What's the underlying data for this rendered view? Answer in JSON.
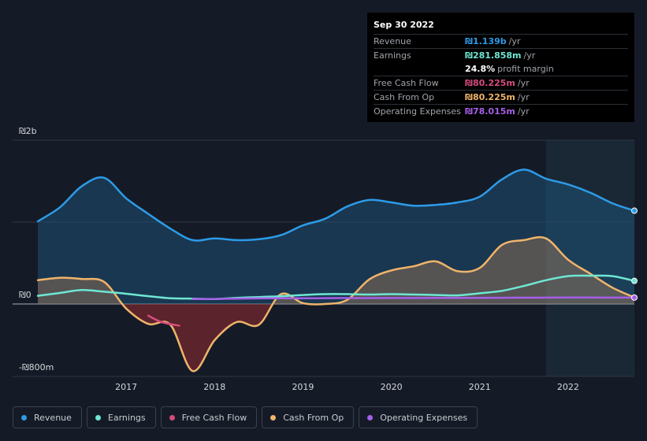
{
  "tooltip": {
    "date": "Sep 30 2022",
    "rows": [
      {
        "label": "Revenue",
        "value": "₪1.139b",
        "unit": "/yr",
        "color": "#2d9be8"
      },
      {
        "label": "Earnings",
        "value": "₪281.858m",
        "unit": "/yr",
        "color": "#6ee7d3"
      },
      {
        "label": "",
        "value": "24.8%",
        "unit": "profit margin",
        "color": "#ffffff"
      },
      {
        "label": "Free Cash Flow",
        "value": "₪80.225m",
        "unit": "/yr",
        "color": "#d64b7e"
      },
      {
        "label": "Cash From Op",
        "value": "₪80.225m",
        "unit": "/yr",
        "color": "#f0b46a"
      },
      {
        "label": "Operating Expenses",
        "value": "₪78.015m",
        "unit": "/yr",
        "color": "#a55fe8"
      }
    ]
  },
  "legend": [
    {
      "label": "Revenue",
      "color": "#2d9be8",
      "icon": "revenue-dot-icon"
    },
    {
      "label": "Earnings",
      "color": "#6ee7d3",
      "icon": "earnings-dot-icon"
    },
    {
      "label": "Free Cash Flow",
      "color": "#d64b7e",
      "icon": "free-cash-flow-dot-icon"
    },
    {
      "label": "Cash From Op",
      "color": "#f0b46a",
      "icon": "cash-from-op-dot-icon"
    },
    {
      "label": "Operating Expenses",
      "color": "#a55fe8",
      "icon": "operating-expenses-dot-icon"
    }
  ],
  "chart_data": {
    "type": "area",
    "ylim": [
      -800,
      2000
    ],
    "y_tick_labels": [
      {
        "value": 2000,
        "label": "₪2b"
      },
      {
        "value": 0,
        "label": "₪0"
      },
      {
        "value": -800,
        "label": "-₪800m"
      }
    ],
    "xlim": [
      2016.0,
      2022.75
    ],
    "x_tick_labels": [
      "2017",
      "2018",
      "2019",
      "2020",
      "2021",
      "2022"
    ],
    "x_tick_values": [
      2017,
      2018,
      2019,
      2020,
      2021,
      2022
    ],
    "highlight_start": 2021.75,
    "series": [
      {
        "name": "Revenue",
        "color": "#2d9be8",
        "fill": true,
        "x": [
          2016.0,
          2016.25,
          2016.5,
          2016.75,
          2017.0,
          2017.25,
          2017.5,
          2017.75,
          2018.0,
          2018.25,
          2018.5,
          2018.75,
          2019.0,
          2019.25,
          2019.5,
          2019.75,
          2020.0,
          2020.25,
          2020.5,
          2020.75,
          2021.0,
          2021.25,
          2021.5,
          2021.75,
          2022.0,
          2022.25,
          2022.5,
          2022.75
        ],
        "values": [
          1010,
          1180,
          1440,
          1540,
          1290,
          1100,
          920,
          780,
          800,
          780,
          790,
          840,
          960,
          1040,
          1190,
          1270,
          1240,
          1200,
          1210,
          1240,
          1310,
          1520,
          1640,
          1530,
          1460,
          1360,
          1230,
          1139
        ]
      },
      {
        "name": "Earnings",
        "color": "#6ee7d3",
        "fill": false,
        "x": [
          2016.0,
          2016.25,
          2016.5,
          2016.75,
          2017.0,
          2017.25,
          2017.5,
          2017.75,
          2018.0,
          2018.25,
          2018.5,
          2018.75,
          2019.0,
          2019.25,
          2019.5,
          2019.75,
          2020.0,
          2020.25,
          2020.5,
          2020.75,
          2021.0,
          2021.25,
          2021.5,
          2021.75,
          2022.0,
          2022.25,
          2022.5,
          2022.75
        ],
        "values": [
          100,
          135,
          170,
          150,
          125,
          95,
          70,
          65,
          60,
          75,
          85,
          95,
          110,
          120,
          120,
          115,
          120,
          115,
          110,
          105,
          130,
          160,
          220,
          290,
          340,
          345,
          340,
          282
        ]
      },
      {
        "name": "Free Cash Flow",
        "color": "#d64b7e",
        "fill": false,
        "x": [
          2017.25,
          2017.4,
          2017.6
        ],
        "values": [
          -130,
          -200,
          -240
        ]
      },
      {
        "name": "Cash From Op",
        "color": "#f0b46a",
        "fill": true,
        "x": [
          2016.0,
          2016.25,
          2016.5,
          2016.75,
          2017.0,
          2017.25,
          2017.5,
          2017.75,
          2018.0,
          2018.25,
          2018.5,
          2018.75,
          2019.0,
          2019.25,
          2019.5,
          2019.75,
          2020.0,
          2020.25,
          2020.5,
          2020.75,
          2021.0,
          2021.25,
          2021.5,
          2021.75,
          2022.0,
          2022.25,
          2022.5,
          2022.75
        ],
        "values": [
          290,
          320,
          305,
          270,
          -50,
          -220,
          -230,
          -740,
          -400,
          -200,
          -230,
          120,
          10,
          0,
          50,
          300,
          410,
          460,
          520,
          400,
          440,
          720,
          780,
          800,
          540,
          370,
          200,
          80
        ]
      },
      {
        "name": "Operating Expenses",
        "color": "#a55fe8",
        "fill": false,
        "x": [
          2017.75,
          2018.0,
          2018.25,
          2018.5,
          2018.75,
          2019.0,
          2019.25,
          2019.5,
          2019.75,
          2020.0,
          2020.25,
          2020.5,
          2020.75,
          2021.0,
          2021.25,
          2021.5,
          2021.75,
          2022.0,
          2022.25,
          2022.5,
          2022.75
        ],
        "values": [
          60,
          62,
          65,
          68,
          70,
          70,
          71,
          72,
          72,
          73,
          73,
          74,
          74,
          75,
          76,
          77,
          78,
          79,
          79,
          78,
          78
        ]
      }
    ]
  }
}
